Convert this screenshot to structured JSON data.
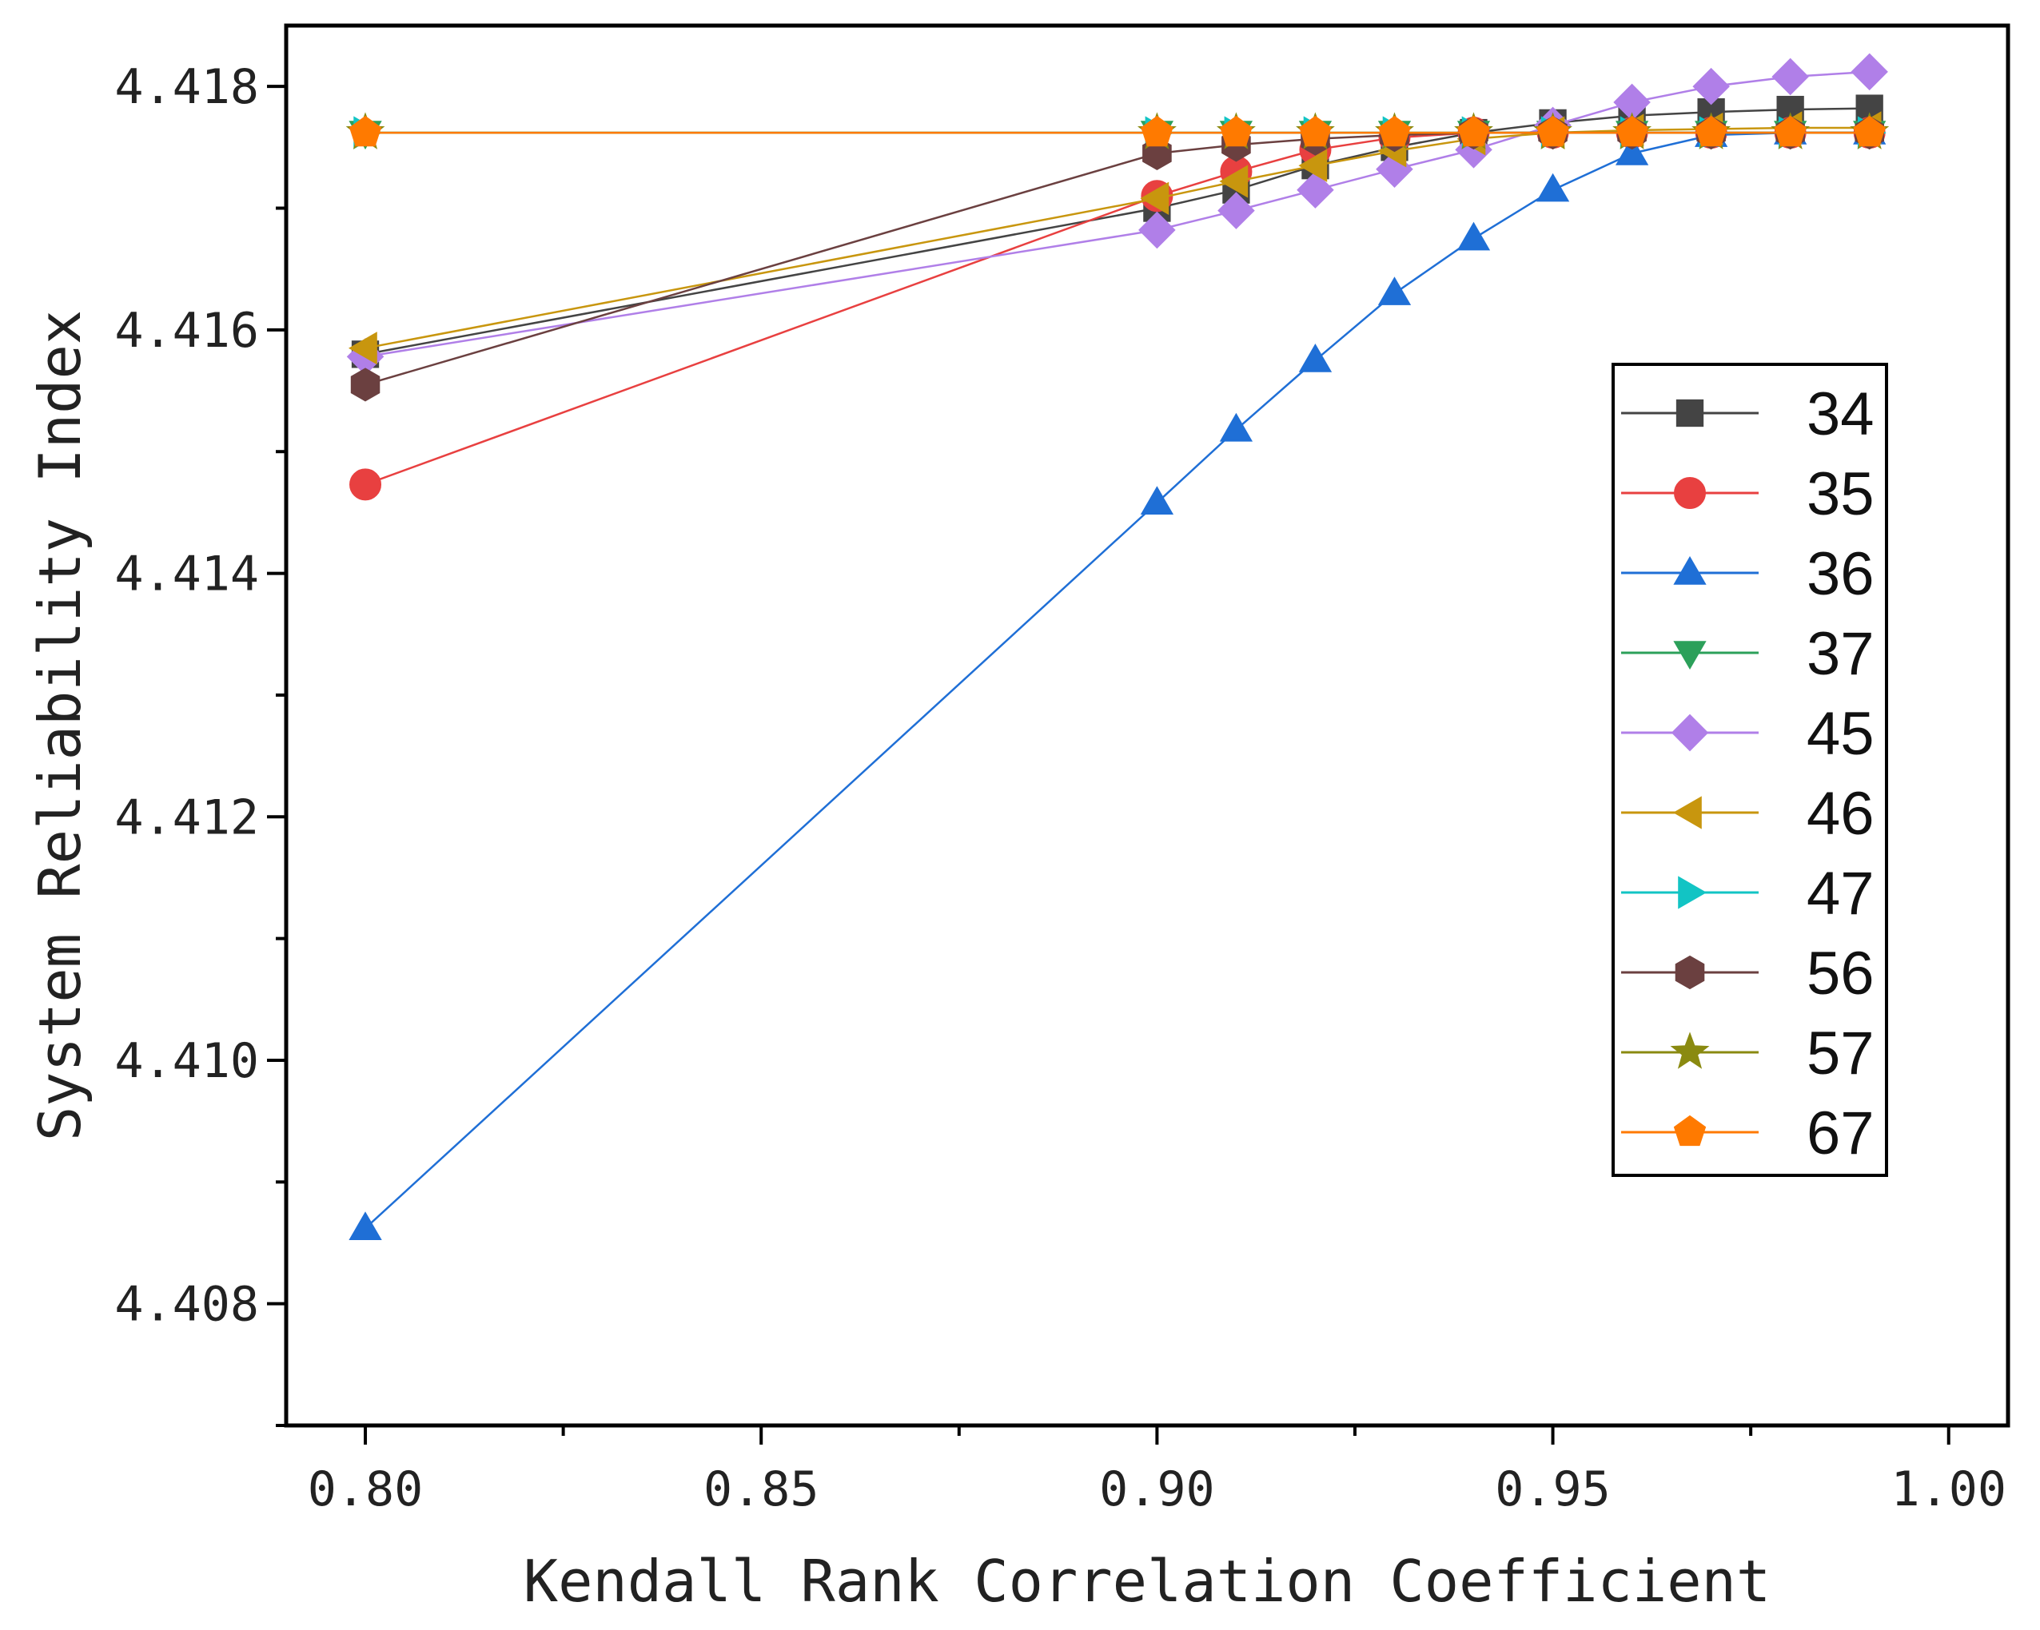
{
  "chart_data": {
    "type": "line",
    "xlabel": "Kendall Rank Correlation Coefficient",
    "ylabel": "System Reliability Index",
    "xlim": [
      0.79,
      1.0075
    ],
    "ylim": [
      4.407,
      4.4185
    ],
    "x_ticks": [
      0.8,
      0.85,
      0.9,
      0.95,
      1.0
    ],
    "x_tick_labels": [
      "0.80",
      "0.85",
      "0.90",
      "0.95",
      "1.00"
    ],
    "y_ticks": [
      4.408,
      4.41,
      4.412,
      4.414,
      4.416,
      4.418
    ],
    "y_tick_labels": [
      "4.408",
      "4.410",
      "4.412",
      "4.414",
      "4.416",
      "4.418"
    ],
    "legend_position": "right",
    "x": [
      0.8,
      0.9,
      0.91,
      0.92,
      0.93,
      0.94,
      0.95,
      0.96,
      0.97,
      0.98,
      0.99
    ],
    "series": [
      {
        "name": "34",
        "color": "#444444",
        "marker": "square",
        "values": [
          4.4158,
          4.417,
          4.41715,
          4.41735,
          4.4175,
          4.41762,
          4.4177,
          4.41776,
          4.41779,
          4.41781,
          4.41782
        ]
      },
      {
        "name": "35",
        "color": "#e84040",
        "marker": "circle",
        "values": [
          4.41473,
          4.4171,
          4.4173,
          4.41748,
          4.41758,
          4.41762,
          4.41762,
          4.41762,
          4.41762,
          4.41762,
          4.41762
        ]
      },
      {
        "name": "36",
        "color": "#1f6fd6",
        "marker": "triangle-up",
        "values": [
          4.40862,
          4.41458,
          4.41518,
          4.41575,
          4.4163,
          4.41675,
          4.41715,
          4.41745,
          4.4176,
          4.41762,
          4.41762
        ]
      },
      {
        "name": "37",
        "color": "#2ca05a",
        "marker": "triangle-down",
        "values": [
          4.41762,
          4.41762,
          4.41762,
          4.41762,
          4.41762,
          4.41762,
          4.41762,
          4.41762,
          4.41762,
          4.41762,
          4.41762
        ]
      },
      {
        "name": "45",
        "color": "#b07fe8",
        "marker": "diamond",
        "values": [
          4.41578,
          4.41682,
          4.41698,
          4.41715,
          4.41732,
          4.41748,
          4.41768,
          4.41787,
          4.418,
          4.41808,
          4.41812
        ]
      },
      {
        "name": "46",
        "color": "#c8960e",
        "marker": "triangle-left",
        "values": [
          4.41585,
          4.41708,
          4.41722,
          4.41735,
          4.41747,
          4.41757,
          4.41762,
          4.41764,
          4.41765,
          4.41766,
          4.41766
        ]
      },
      {
        "name": "47",
        "color": "#12c4c4",
        "marker": "triangle-right",
        "values": [
          4.41762,
          4.41762,
          4.41762,
          4.41762,
          4.41762,
          4.41762,
          4.41762,
          4.41762,
          4.41762,
          4.41762,
          4.41762
        ]
      },
      {
        "name": "56",
        "color": "#6b4040",
        "marker": "hexagon",
        "values": [
          4.41555,
          4.41745,
          4.41752,
          4.41757,
          4.4176,
          4.41762,
          4.41762,
          4.41762,
          4.41762,
          4.41762,
          4.41762
        ]
      },
      {
        "name": "57",
        "color": "#8a8a10",
        "marker": "star",
        "values": [
          4.41762,
          4.41762,
          4.41762,
          4.41762,
          4.41762,
          4.41762,
          4.41762,
          4.41762,
          4.41762,
          4.41762,
          4.41762
        ]
      },
      {
        "name": "67",
        "color": "#ff7a00",
        "marker": "pentagon",
        "values": [
          4.41762,
          4.41762,
          4.41762,
          4.41762,
          4.41762,
          4.41762,
          4.41762,
          4.41762,
          4.41762,
          4.41762,
          4.41762
        ]
      }
    ]
  }
}
